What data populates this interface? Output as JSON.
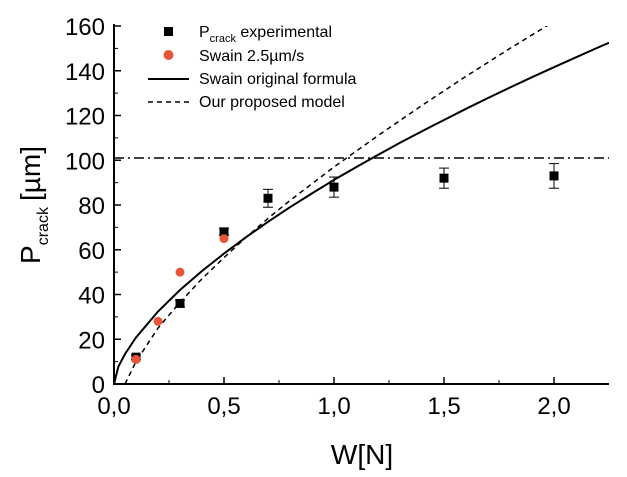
{
  "chart_data": {
    "type": "scatter",
    "xlabel": "W[N]",
    "ylabel_main": "P",
    "ylabel_sub": "crack",
    "ylabel_unit": "[µm]",
    "xlim": [
      0,
      2.25
    ],
    "ylim": [
      0,
      160
    ],
    "xticks": [
      0,
      0.5,
      1.0,
      1.5,
      2.0
    ],
    "xtick_labels": [
      "0,0",
      "0,5",
      "1,0",
      "1,5",
      "2,0"
    ],
    "yticks": [
      0,
      20,
      40,
      60,
      80,
      100,
      120,
      140,
      160
    ],
    "ytick_labels": [
      "0",
      "20",
      "40",
      "60",
      "80",
      "100",
      "120",
      "140",
      "160"
    ],
    "series": [
      {
        "key": "experimental",
        "name_main": "P",
        "name_sub": "crack",
        "name_rest": " experimental",
        "kind": "scatter",
        "marker": "square",
        "color": "#000000",
        "x": [
          0.1,
          0.3,
          0.5,
          0.7,
          1.0,
          1.5,
          2.0
        ],
        "y": [
          12,
          36,
          68,
          83,
          88,
          92,
          93
        ],
        "err": [
          1,
          1.5,
          1.5,
          4,
          4.5,
          4.5,
          5.5
        ]
      },
      {
        "key": "swain-rate",
        "name": "Swain 2.5µm/s",
        "kind": "scatter",
        "marker": "circle",
        "color": "#e8553a",
        "x": [
          0.1,
          0.2,
          0.3,
          0.5
        ],
        "y": [
          11,
          28,
          50,
          65
        ]
      },
      {
        "key": "swain-formula",
        "name": "Swain original formula",
        "kind": "line",
        "dash": "solid",
        "color": "#000000",
        "x": [
          0,
          0.02,
          0.05,
          0.1,
          0.2,
          0.3,
          0.4,
          0.5,
          0.6,
          0.7,
          0.8,
          0.9,
          1.0,
          1.1,
          1.2,
          1.3,
          1.4,
          1.5,
          1.6,
          1.7,
          1.8,
          1.9,
          2.0,
          2.1,
          2.2,
          2.25
        ],
        "y": [
          0,
          7.8,
          13.4,
          20.8,
          32.4,
          42.0,
          50.5,
          58.3,
          65.6,
          72.5,
          79.0,
          85.2,
          91.2,
          96.9,
          102.4,
          107.8,
          113.0,
          118.0,
          123.0,
          127.8,
          132.5,
          137.1,
          141.6,
          146.0,
          150.4,
          152.5
        ]
      },
      {
        "key": "proposed-model",
        "name": "Our proposed model",
        "kind": "line",
        "dash": "dashed",
        "color": "#000000",
        "x": [
          0.05,
          0.1,
          0.2,
          0.3,
          0.4,
          0.5,
          0.6,
          0.7,
          0.8,
          0.9,
          1.0,
          1.2,
          1.4,
          1.6,
          1.8,
          2.0,
          2.1
        ],
        "y": [
          0,
          10,
          25,
          36.5,
          47,
          56.5,
          65.5,
          74,
          82,
          89.5,
          97,
          111,
          124.5,
          137.5,
          150,
          162,
          168
        ]
      }
    ],
    "reference_line": {
      "y": 101,
      "style": "dash-dot",
      "color": "#000000"
    },
    "legend_position": "top-left",
    "grid": false
  }
}
